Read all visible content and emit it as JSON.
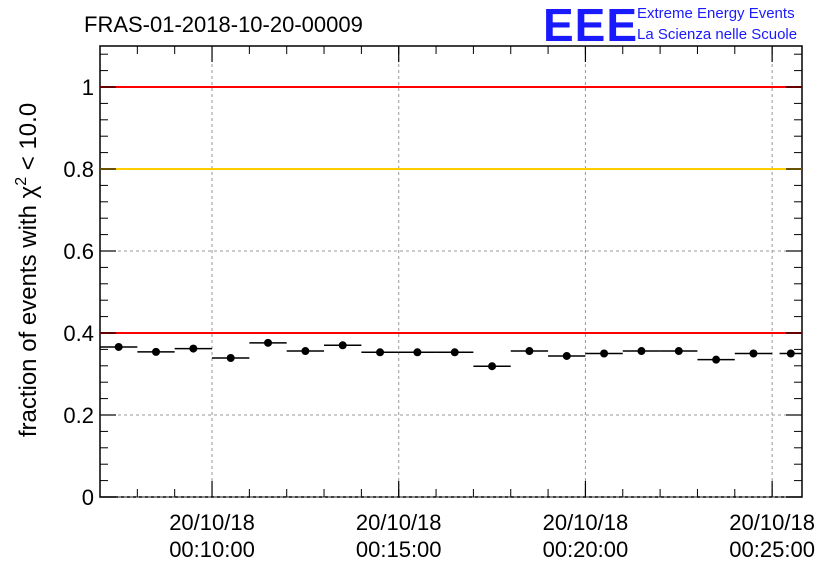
{
  "colors": {
    "frame": "#000000",
    "grid": "#999999",
    "red_line": "#ff0000",
    "yellow_line": "#ffcc00",
    "logo": "#1a1aff",
    "marker": "#000000"
  },
  "logo": {
    "mark": "EEE",
    "line1": "Extreme Energy Events",
    "line2": "La Scienza nelle Scuole"
  },
  "chart_data": {
    "type": "scatter",
    "title": "FRAS-01-2018-10-20-00009",
    "ylabel_main": "fraction of events with χ",
    "ylabel_sup": "2",
    "ylabel_tail": " < 10.0",
    "xlabel": "",
    "xlim_minutes": [
      7.0,
      25.8
    ],
    "ylim": [
      0,
      1.1
    ],
    "yticks": [
      0,
      0.2,
      0.4,
      0.6,
      0.8,
      1
    ],
    "ytick_labels": [
      "0",
      "0.2",
      "0.4",
      "0.6",
      "0.8",
      "1"
    ],
    "xticks_minutes": [
      10,
      15,
      20,
      25
    ],
    "xtick_labels": [
      {
        "date": "20/10/18",
        "time": "00:10:00"
      },
      {
        "date": "20/10/18",
        "time": "00:15:00"
      },
      {
        "date": "20/10/18",
        "time": "00:20:00"
      },
      {
        "date": "20/10/18",
        "time": "00:25:00"
      }
    ],
    "bin_width_minutes": 1.0,
    "reference_lines": [
      {
        "value": 1.0,
        "color": "red"
      },
      {
        "value": 0.8,
        "color": "yellow"
      },
      {
        "value": 0.4,
        "color": "red"
      }
    ],
    "series": [
      {
        "name": "fraction",
        "x_minutes": [
          7.5,
          8.5,
          9.5,
          10.5,
          11.5,
          12.5,
          13.5,
          14.5,
          15.5,
          16.5,
          17.5,
          18.5,
          19.5,
          20.5,
          21.5,
          22.5,
          23.5,
          24.5,
          25.5
        ],
        "values": [
          0.366,
          0.354,
          0.362,
          0.339,
          0.376,
          0.356,
          0.37,
          0.353,
          0.353,
          0.353,
          0.319,
          0.356,
          0.344,
          0.35,
          0.356,
          0.356,
          0.335,
          0.35,
          0.35
        ],
        "bin_widths": [
          1,
          1,
          1,
          1,
          1,
          1,
          1,
          1,
          1,
          1,
          1,
          1,
          1,
          1,
          1,
          1,
          1,
          1,
          0.6
        ]
      }
    ]
  }
}
